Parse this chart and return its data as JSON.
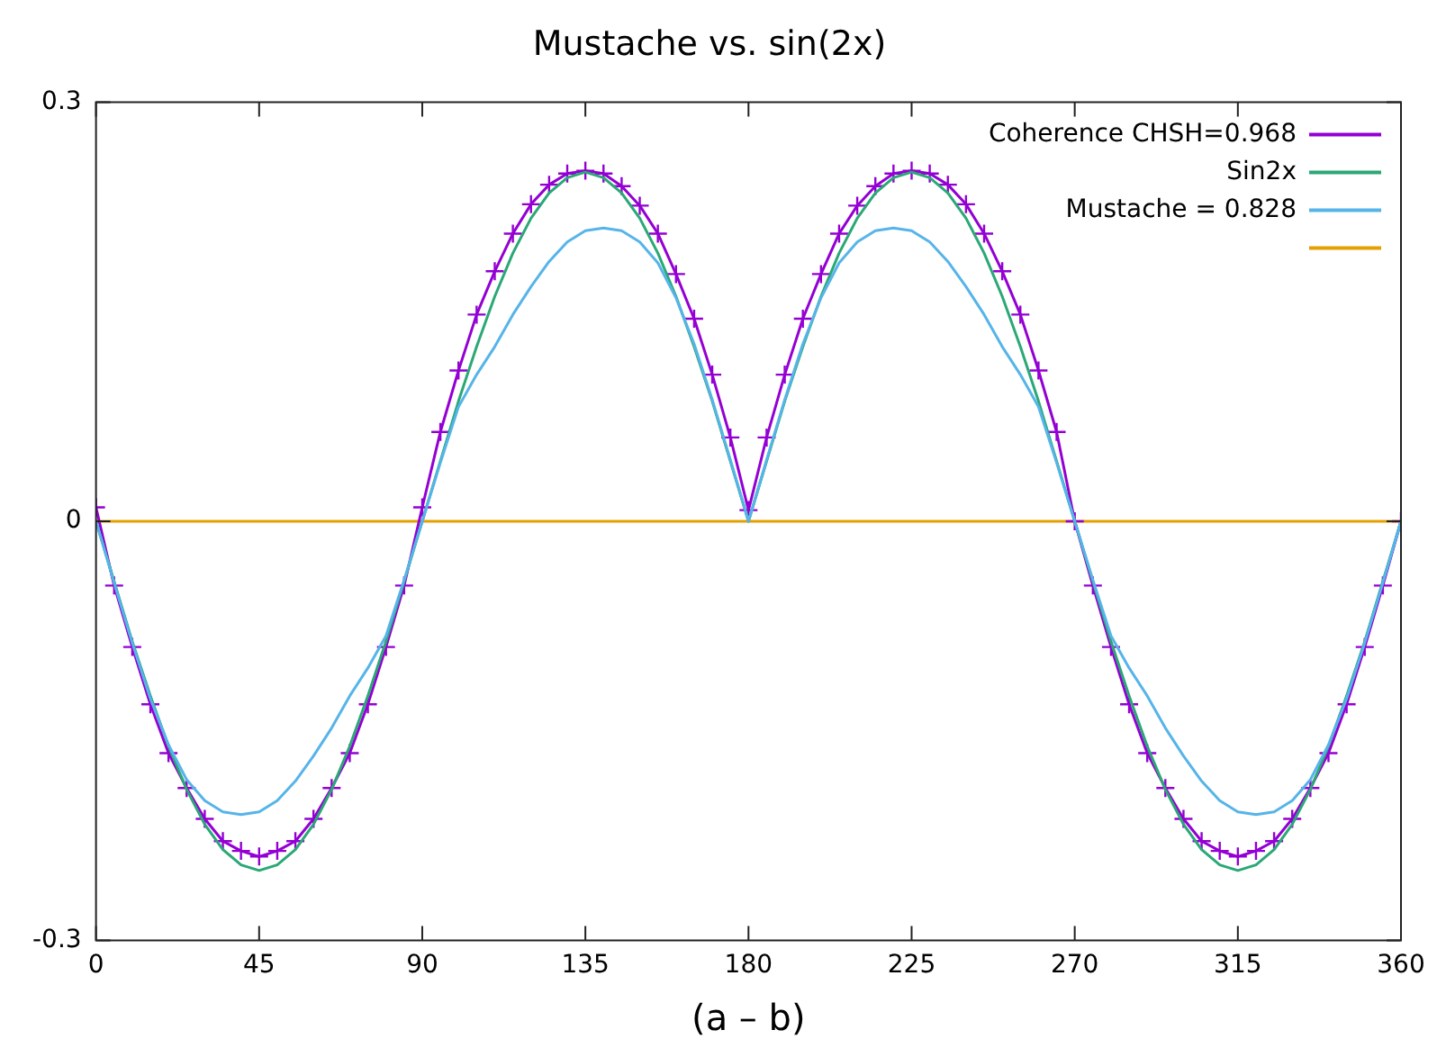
{
  "chart_data": {
    "type": "line",
    "title": "Mustache vs. sin(2x)",
    "xlabel": "(a – b)",
    "x": [
      0,
      5,
      10,
      15,
      20,
      25,
      30,
      35,
      40,
      45,
      50,
      55,
      60,
      65,
      70,
      75,
      80,
      85,
      90,
      95,
      100,
      105,
      110,
      115,
      120,
      125,
      130,
      135,
      140,
      145,
      150,
      155,
      160,
      165,
      170,
      175,
      180,
      185,
      190,
      195,
      200,
      205,
      210,
      215,
      220,
      225,
      230,
      235,
      240,
      245,
      250,
      255,
      260,
      265,
      270,
      275,
      280,
      285,
      290,
      295,
      300,
      305,
      310,
      315,
      320,
      325,
      330,
      335,
      340,
      345,
      350,
      355,
      360
    ],
    "xlim": [
      0,
      360
    ],
    "xticks": [
      0,
      45,
      90,
      135,
      180,
      225,
      270,
      315,
      360
    ],
    "ylim": [
      -0.3,
      0.3
    ],
    "yticks": [
      -0.3,
      0,
      0.3
    ],
    "grid": false,
    "legend": "top right",
    "series": [
      {
        "name": "Coherence CHSH=0.968",
        "color": "#9400d3",
        "marker": "cross",
        "values": [
          0.01,
          -0.046,
          -0.09,
          -0.131,
          -0.166,
          -0.191,
          -0.213,
          -0.229,
          -0.236,
          -0.24,
          -0.236,
          -0.229,
          -0.213,
          -0.191,
          -0.166,
          -0.131,
          -0.09,
          -0.046,
          0.01,
          0.064,
          0.108,
          0.148,
          0.179,
          0.206,
          0.227,
          0.241,
          0.249,
          0.251,
          0.249,
          0.24,
          0.226,
          0.206,
          0.177,
          0.145,
          0.105,
          0.06,
          0.008,
          0.06,
          0.105,
          0.145,
          0.177,
          0.206,
          0.226,
          0.24,
          0.249,
          0.251,
          0.249,
          0.241,
          0.227,
          0.206,
          0.179,
          0.148,
          0.108,
          0.064,
          0,
          -0.046,
          -0.09,
          -0.131,
          -0.166,
          -0.191,
          -0.213,
          -0.229,
          -0.236,
          -0.24,
          -0.236,
          -0.229,
          -0.213,
          -0.191,
          -0.166,
          -0.131,
          -0.09,
          -0.046,
          0
        ]
      },
      {
        "name": "Sin2x",
        "color": "#2aa876",
        "values": [
          0,
          -0.043,
          -0.086,
          -0.125,
          -0.161,
          -0.192,
          -0.217,
          -0.235,
          -0.246,
          -0.25,
          -0.246,
          -0.235,
          -0.217,
          -0.192,
          -0.161,
          -0.125,
          -0.086,
          -0.043,
          0,
          0.043,
          0.086,
          0.125,
          0.161,
          0.192,
          0.217,
          0.235,
          0.246,
          0.25,
          0.246,
          0.235,
          0.217,
          0.192,
          0.161,
          0.125,
          0.086,
          0.043,
          0,
          0.043,
          0.086,
          0.125,
          0.161,
          0.192,
          0.217,
          0.235,
          0.246,
          0.25,
          0.246,
          0.235,
          0.217,
          0.192,
          0.161,
          0.125,
          0.086,
          0.043,
          0,
          -0.043,
          -0.086,
          -0.125,
          -0.161,
          -0.192,
          -0.217,
          -0.235,
          -0.246,
          -0.25,
          -0.246,
          -0.235,
          -0.217,
          -0.192,
          -0.161,
          -0.125,
          -0.086,
          -0.043,
          0
        ]
      },
      {
        "name": "Mustache = 0.828",
        "color": "#56b4e9",
        "values": [
          0,
          -0.044,
          -0.087,
          -0.127,
          -0.16,
          -0.185,
          -0.2,
          -0.208,
          -0.21,
          -0.208,
          -0.2,
          -0.186,
          -0.168,
          -0.148,
          -0.125,
          -0.105,
          -0.082,
          -0.042,
          0,
          0.042,
          0.082,
          0.105,
          0.125,
          0.148,
          0.168,
          0.186,
          0.2,
          0.208,
          0.21,
          0.208,
          0.2,
          0.185,
          0.16,
          0.127,
          0.087,
          0.044,
          0,
          0.044,
          0.087,
          0.127,
          0.16,
          0.185,
          0.2,
          0.208,
          0.21,
          0.208,
          0.2,
          0.186,
          0.168,
          0.148,
          0.125,
          0.105,
          0.082,
          0.042,
          0,
          -0.042,
          -0.082,
          -0.105,
          -0.125,
          -0.148,
          -0.168,
          -0.186,
          -0.2,
          -0.208,
          -0.21,
          -0.208,
          -0.2,
          -0.185,
          -0.16,
          -0.127,
          -0.087,
          -0.044,
          0
        ]
      },
      {
        "color": "#e69f00",
        "x": [
          0,
          360
        ],
        "values": [
          0,
          0
        ]
      }
    ]
  }
}
